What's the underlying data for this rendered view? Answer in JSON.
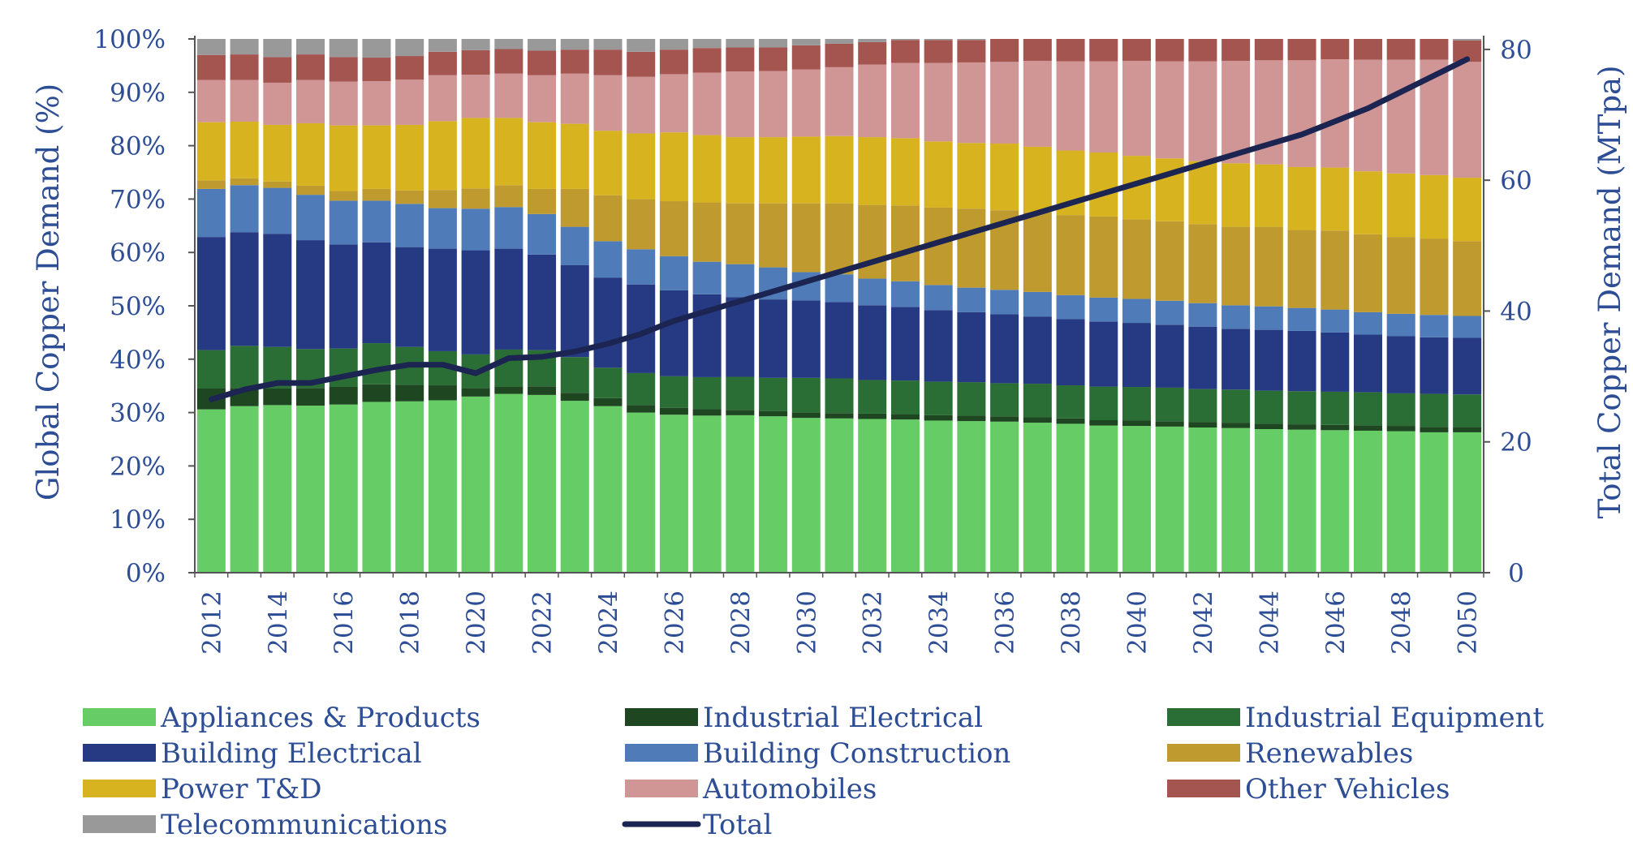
{
  "chart_data": {
    "type": "bar",
    "subtype": "100%-stacked-bar-with-line",
    "title": "",
    "years": [
      2012,
      2013,
      2014,
      2015,
      2016,
      2017,
      2018,
      2019,
      2020,
      2021,
      2022,
      2023,
      2024,
      2025,
      2026,
      2027,
      2028,
      2029,
      2030,
      2031,
      2032,
      2033,
      2034,
      2035,
      2036,
      2037,
      2038,
      2039,
      2040,
      2041,
      2042,
      2043,
      2044,
      2045,
      2046,
      2047,
      2048,
      2049,
      2050
    ],
    "x_tick_labels": [
      "2012",
      "2014",
      "2016",
      "2018",
      "2020",
      "2022",
      "2024",
      "2026",
      "2028",
      "2030",
      "2032",
      "2034",
      "2036",
      "2038",
      "2040",
      "2042",
      "2044",
      "2046",
      "2048",
      "2050"
    ],
    "left_axis": {
      "label": "Global Copper Demand (%)",
      "range": [
        0,
        100
      ],
      "ticks": [
        "0%",
        "10%",
        "20%",
        "30%",
        "40%",
        "50%",
        "60%",
        "70%",
        "80%",
        "90%",
        "100%"
      ]
    },
    "right_axis": {
      "label": "Total Copper Demand (MTpa)",
      "range": [
        0,
        81.6
      ],
      "ticks": [
        "0",
        "20",
        "40",
        "60",
        "80"
      ],
      "tick_values": [
        0,
        20,
        40,
        60,
        80
      ]
    },
    "series": [
      {
        "name": "Appliances & Products",
        "color": "#66cc66",
        "values": [
          30.6,
          31.2,
          31.4,
          31.3,
          31.5,
          32.0,
          32.1,
          32.3,
          33.0,
          33.5,
          33.3,
          32.2,
          31.2,
          30.0,
          29.6,
          29.4,
          29.5,
          29.3,
          29.0,
          28.9,
          28.8,
          28.7,
          28.5,
          28.4,
          28.3,
          28.1,
          27.9,
          27.6,
          27.5,
          27.4,
          27.2,
          27.1,
          26.9,
          26.8,
          26.7,
          26.6,
          26.5,
          26.3,
          26.3
        ]
      },
      {
        "name": "Industrial Electrical",
        "color": "#1e4620",
        "values": [
          3.9,
          3.4,
          3.1,
          3.3,
          3.3,
          3.3,
          3.1,
          2.8,
          1.6,
          1.3,
          1.6,
          1.5,
          1.5,
          1.4,
          1.3,
          1.2,
          1.0,
          1.0,
          1.0,
          1.0,
          1.0,
          1.0,
          1.0,
          1.0,
          1.0,
          1.0,
          1.0,
          1.0,
          1.0,
          1.0,
          1.0,
          1.0,
          1.0,
          1.0,
          1.0,
          1.0,
          1.0,
          1.0,
          1.0
        ]
      },
      {
        "name": "Industrial Equipment",
        "color": "#2b6e35",
        "values": [
          7.2,
          7.9,
          7.8,
          7.3,
          7.2,
          7.7,
          7.1,
          6.4,
          6.3,
          7.0,
          6.8,
          6.7,
          5.7,
          6.0,
          5.9,
          6.0,
          6.2,
          6.2,
          6.5,
          6.5,
          6.3,
          6.3,
          6.3,
          6.3,
          6.2,
          6.3,
          6.2,
          6.3,
          6.3,
          6.3,
          6.2,
          6.2,
          6.2,
          6.2,
          6.2,
          6.2,
          6.1,
          6.2,
          6.1
        ]
      },
      {
        "name": "Building Electrical",
        "color": "#263983",
        "values": [
          21.2,
          21.3,
          21.2,
          20.4,
          19.5,
          18.9,
          18.7,
          19.2,
          19.5,
          18.9,
          17.9,
          17.2,
          16.9,
          16.6,
          16.1,
          15.5,
          14.9,
          14.7,
          14.5,
          14.3,
          14.0,
          13.8,
          13.4,
          13.1,
          12.9,
          12.6,
          12.4,
          12.2,
          12.0,
          11.8,
          11.7,
          11.4,
          11.4,
          11.3,
          11.1,
          10.8,
          10.7,
          10.6,
          10.6
        ]
      },
      {
        "name": "Building Construction",
        "color": "#4f7cb8",
        "values": [
          9.0,
          8.8,
          8.6,
          8.5,
          8.2,
          7.8,
          8.1,
          7.6,
          7.8,
          7.8,
          7.6,
          7.2,
          6.8,
          6.6,
          6.4,
          6.1,
          6.2,
          6.0,
          5.3,
          5.2,
          5.0,
          4.8,
          4.7,
          4.6,
          4.6,
          4.6,
          4.5,
          4.5,
          4.5,
          4.5,
          4.4,
          4.4,
          4.4,
          4.3,
          4.3,
          4.2,
          4.2,
          4.2,
          4.1
        ]
      },
      {
        "name": "Renewables",
        "color": "#bf9a2e",
        "values": [
          1.6,
          1.3,
          1.2,
          1.7,
          1.8,
          2.2,
          2.5,
          3.4,
          3.8,
          4.1,
          4.7,
          7.1,
          8.6,
          9.4,
          10.3,
          11.1,
          11.4,
          12.0,
          12.9,
          13.3,
          13.8,
          14.2,
          14.5,
          14.8,
          14.9,
          14.9,
          15.0,
          15.2,
          14.9,
          14.9,
          14.8,
          14.7,
          14.9,
          14.6,
          14.8,
          14.6,
          14.4,
          14.3,
          14.0
        ]
      },
      {
        "name": "Power T&D",
        "color": "#d6b31f",
        "values": [
          10.9,
          10.6,
          10.6,
          11.7,
          12.3,
          11.9,
          12.3,
          12.9,
          13.2,
          12.6,
          12.5,
          12.2,
          12.1,
          12.3,
          12.9,
          12.6,
          12.4,
          12.4,
          12.5,
          12.6,
          12.7,
          12.6,
          12.4,
          12.3,
          12.5,
          12.3,
          12.1,
          12.0,
          11.9,
          11.8,
          11.8,
          11.9,
          11.7,
          11.8,
          11.8,
          11.8,
          11.9,
          11.9,
          11.9
        ]
      },
      {
        "name": "Automobiles",
        "color": "#d09595",
        "values": [
          7.9,
          7.8,
          7.9,
          8.1,
          8.2,
          8.3,
          8.5,
          8.6,
          8.1,
          8.3,
          8.8,
          9.4,
          10.4,
          10.6,
          10.9,
          11.7,
          12.3,
          12.4,
          12.6,
          12.9,
          13.6,
          14.1,
          14.7,
          15.1,
          15.3,
          16.1,
          16.7,
          17.1,
          17.8,
          18.2,
          18.7,
          19.2,
          19.5,
          20.0,
          20.3,
          20.9,
          21.3,
          21.6,
          21.7
        ]
      },
      {
        "name": "Other Vehicles",
        "color": "#a55550",
        "values": [
          4.7,
          4.8,
          4.8,
          4.8,
          4.6,
          4.4,
          4.4,
          4.4,
          4.6,
          4.6,
          4.6,
          4.5,
          4.8,
          4.7,
          4.6,
          4.6,
          4.5,
          4.4,
          4.5,
          4.4,
          4.2,
          4.3,
          4.3,
          4.2,
          4.3,
          4.1,
          4.2,
          4.2,
          4.1,
          4.2,
          4.2,
          4.1,
          4.0,
          4.0,
          3.8,
          3.9,
          3.9,
          3.9,
          4.0
        ]
      },
      {
        "name": "Telecommunications",
        "color": "#999999",
        "values": [
          3.0,
          2.9,
          3.4,
          2.9,
          3.4,
          3.5,
          3.2,
          2.4,
          2.1,
          1.9,
          2.2,
          2.0,
          2.0,
          2.4,
          2.0,
          1.7,
          1.6,
          1.6,
          1.2,
          0.9,
          0.6,
          0.2,
          0.2,
          0.2,
          0.0,
          0.0,
          0.0,
          0.0,
          0.0,
          0.0,
          0.0,
          0.0,
          0.0,
          0.0,
          0.0,
          0.0,
          0.0,
          0.0,
          0.3
        ]
      }
    ],
    "line": {
      "name": "Total",
      "color": "#1c2552",
      "axis": "right",
      "values": [
        26.5,
        28.0,
        29.0,
        29.0,
        30.0,
        31.0,
        31.8,
        31.8,
        30.5,
        32.8,
        33.0,
        33.8,
        35.0,
        36.5,
        38.5,
        40.0,
        41.5,
        43.0,
        44.5,
        46.0,
        47.5,
        49.0,
        50.5,
        52.0,
        53.5,
        55.0,
        56.5,
        58.0,
        59.5,
        61.0,
        62.5,
        64.0,
        65.5,
        67.0,
        69.0,
        71.0,
        73.5,
        76.0,
        78.5
      ]
    },
    "legend": {
      "placement": "bottom",
      "entries": [
        {
          "label": "Appliances & Products",
          "color": "#66cc66",
          "kind": "box"
        },
        {
          "label": "Industrial Electrical",
          "color": "#1e4620",
          "kind": "box"
        },
        {
          "label": "Industrial Equipment",
          "color": "#2b6e35",
          "kind": "box"
        },
        {
          "label": "Building Electrical",
          "color": "#263983",
          "kind": "box"
        },
        {
          "label": "Building Construction",
          "color": "#4f7cb8",
          "kind": "box"
        },
        {
          "label": "Renewables",
          "color": "#bf9a2e",
          "kind": "box"
        },
        {
          "label": "Power T&D",
          "color": "#d6b31f",
          "kind": "box"
        },
        {
          "label": "Automobiles",
          "color": "#d09595",
          "kind": "box"
        },
        {
          "label": "Other Vehicles",
          "color": "#a55550",
          "kind": "box"
        },
        {
          "label": "Telecommunications",
          "color": "#999999",
          "kind": "box"
        },
        {
          "label": "Total",
          "color": "#1c2552",
          "kind": "line"
        }
      ]
    },
    "colors": {
      "axis_text": "#2d4d95",
      "axis_line": "#555555"
    }
  }
}
